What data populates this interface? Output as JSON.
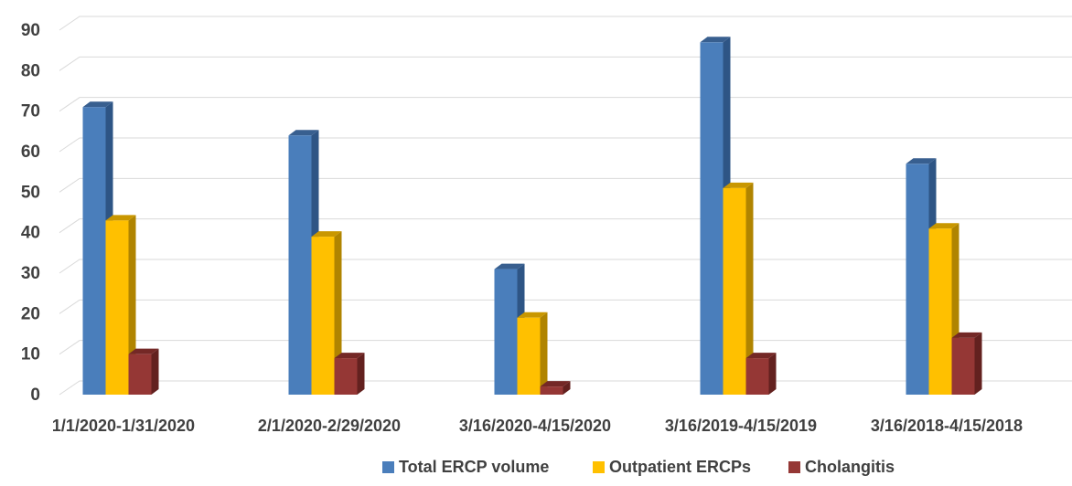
{
  "chart_data": {
    "type": "bar",
    "title": "",
    "xlabel": "",
    "ylabel": "",
    "categories": [
      "1/1/2020-1/31/2020",
      "2/1/2020-2/29/2020",
      "3/16/2020-4/15/2020",
      "3/16/2019-4/15/2019",
      "3/16/2018-4/15/2018"
    ],
    "series": [
      {
        "name": "Total ERCP volume",
        "values": [
          71,
          64,
          31,
          87,
          57
        ],
        "color": "#4a7ebb",
        "side_color": "#2e5585",
        "top_color": "#385f8f"
      },
      {
        "name": "Outpatient ERCPs",
        "values": [
          43,
          39,
          19,
          51,
          41
        ],
        "color": "#ffc000",
        "side_color": "#b08400",
        "top_color": "#c99700"
      },
      {
        "name": "Cholangitis",
        "values": [
          10,
          9,
          2,
          9,
          14
        ],
        "color": "#953735",
        "side_color": "#63211f",
        "top_color": "#742826"
      }
    ],
    "ylim": [
      0,
      90
    ],
    "yticks": [
      0,
      10,
      20,
      30,
      40,
      50,
      60,
      70,
      80,
      90
    ],
    "grid": true,
    "legend": "bottom-center",
    "three_d": true
  }
}
